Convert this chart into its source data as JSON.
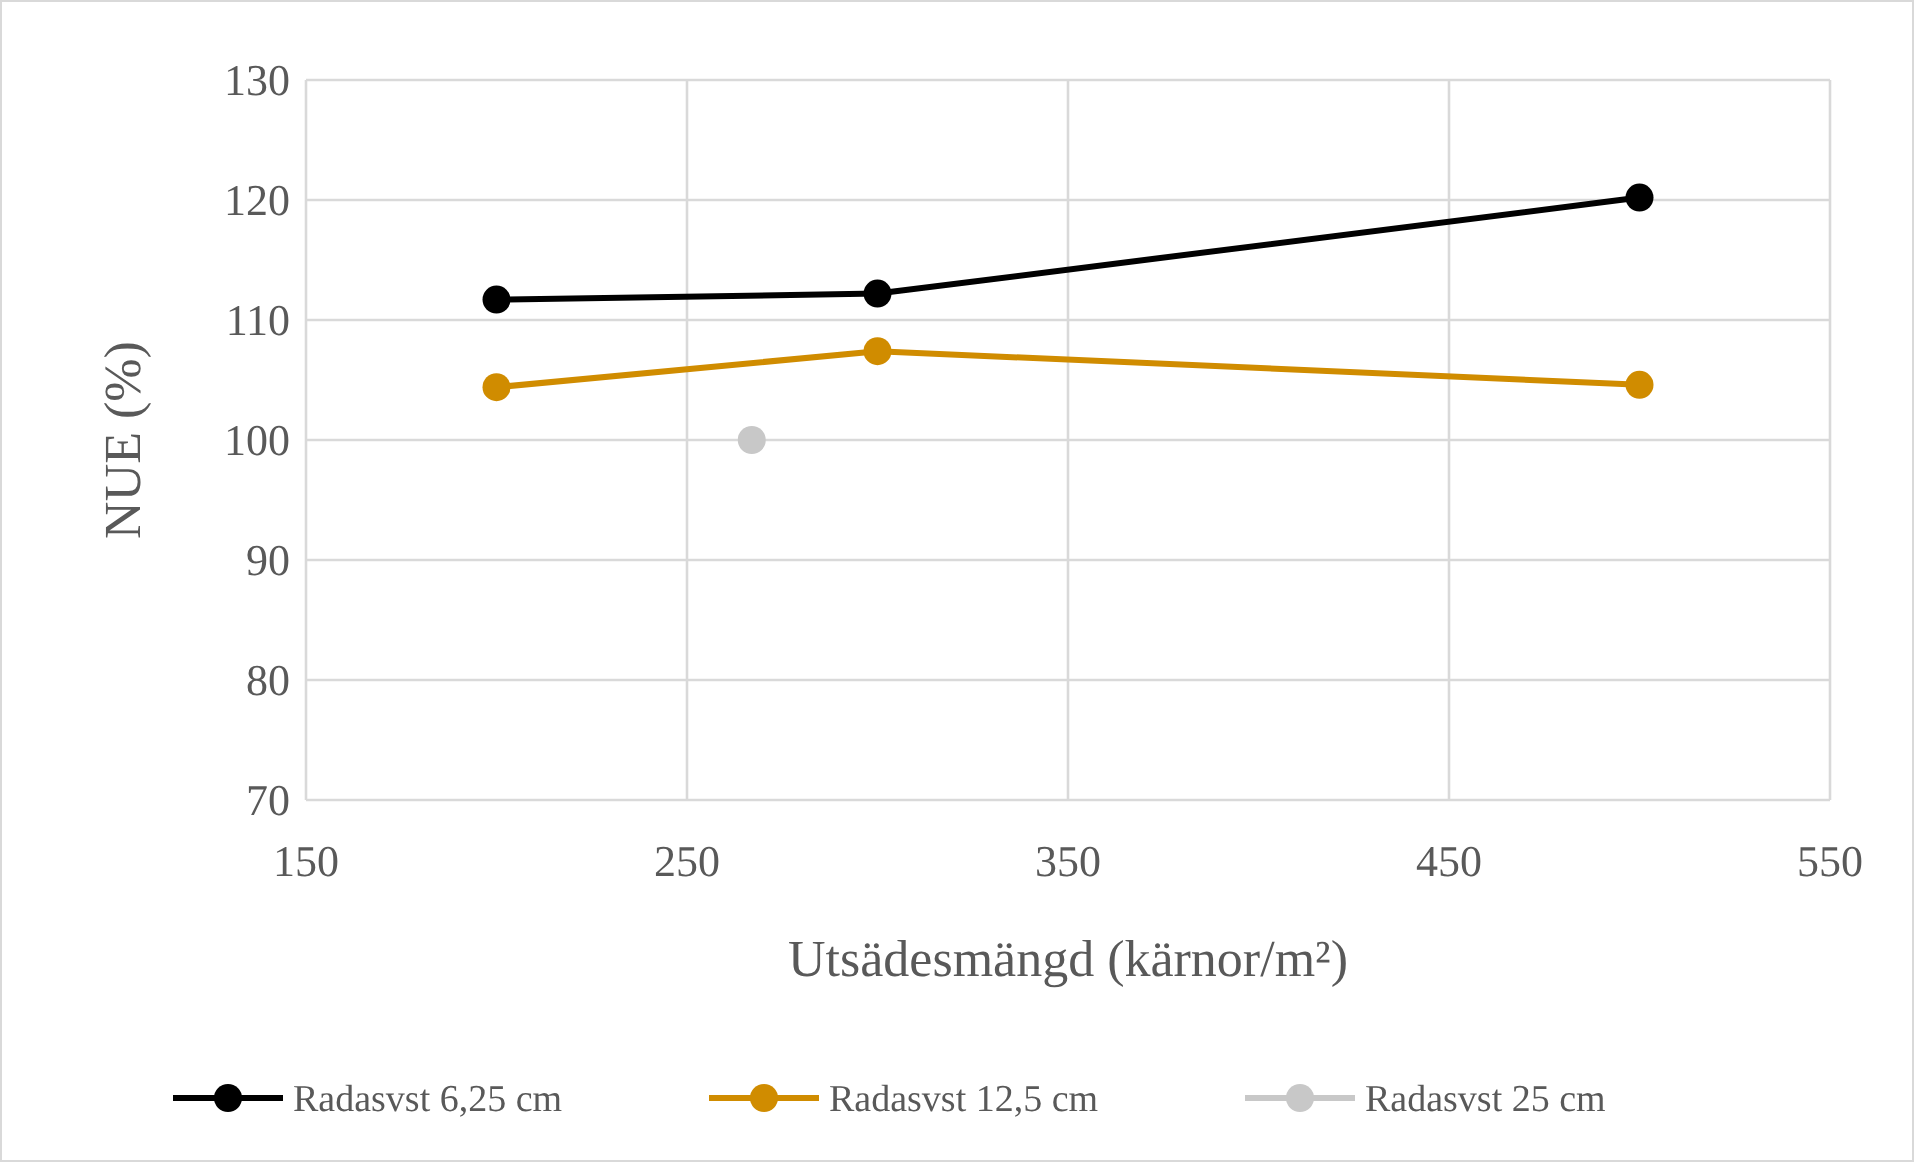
{
  "chart_data": {
    "type": "line",
    "xlabel": "Utsädesmängd (kärnor/m²)",
    "ylabel": "NUE (%)",
    "xlim": [
      150,
      550
    ],
    "xticks": [
      150,
      250,
      350,
      450,
      550
    ],
    "ylim": [
      70,
      130
    ],
    "yticks": [
      70,
      80,
      90,
      100,
      110,
      120,
      130
    ],
    "grid": true,
    "legend": "bottom",
    "marker": "circle",
    "line_style": "solid",
    "series": [
      {
        "name": "Radasvst 6,25 cm",
        "color": "#000000",
        "x": [
          200,
          300,
          500
        ],
        "values": [
          111.7,
          112.2,
          120.2
        ]
      },
      {
        "name": "Radasvst 12,5 cm",
        "color": "#d08c00",
        "x": [
          200,
          300,
          500
        ],
        "values": [
          104.4,
          107.4,
          104.6
        ]
      },
      {
        "name": "Radasvst 25 cm",
        "color": "#c8c8c8",
        "x": [
          267
        ],
        "values": [
          100
        ]
      }
    ]
  }
}
